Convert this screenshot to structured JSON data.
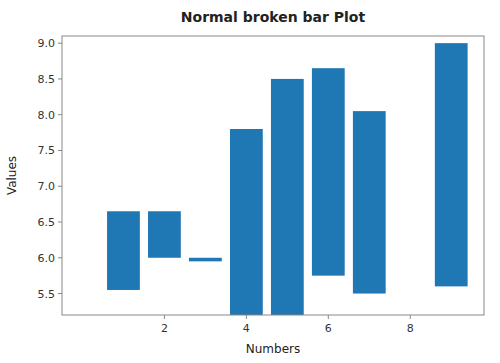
{
  "chart_data": {
    "type": "broken_barh",
    "title": "Normal broken bar Plot",
    "xlabel": "Numbers",
    "ylabel": "Values",
    "color": "#1f77b4",
    "bars": [
      {
        "xrange": [
          0.6,
          0.8
        ],
        "yrange": [
          5.55,
          1.1
        ]
      },
      {
        "xrange": [
          1.6,
          0.8
        ],
        "yrange": [
          6.0,
          0.65
        ]
      },
      {
        "xrange": [
          2.6,
          0.8
        ],
        "yrange": [
          5.95,
          0.05
        ]
      },
      {
        "xrange": [
          3.6,
          0.8
        ],
        "yrange": [
          5.2,
          2.6
        ]
      },
      {
        "xrange": [
          4.6,
          0.8
        ],
        "yrange": [
          5.2,
          3.3
        ]
      },
      {
        "xrange": [
          5.6,
          0.8
        ],
        "yrange": [
          5.75,
          2.9
        ]
      },
      {
        "xrange": [
          6.6,
          0.8
        ],
        "yrange": [
          5.5,
          2.55
        ]
      },
      {
        "xrange": [
          8.6,
          0.8
        ],
        "yrange": [
          5.6,
          3.4
        ]
      }
    ],
    "xlim": [
      -0.5,
      9.8
    ],
    "xticks": [
      2,
      4,
      6,
      8
    ],
    "ylim": [
      5.2,
      9.1
    ],
    "yticks": [
      5.5,
      {
        "value": 6.0,
        "label": "6.0"
      },
      6.5,
      {
        "value": 7.0,
        "label": "7.0"
      },
      7.5,
      {
        "value": 8.0,
        "label": "8.0"
      },
      8.5,
      {
        "value": 9.0,
        "label": "9.0"
      }
    ],
    "grid": false
  }
}
